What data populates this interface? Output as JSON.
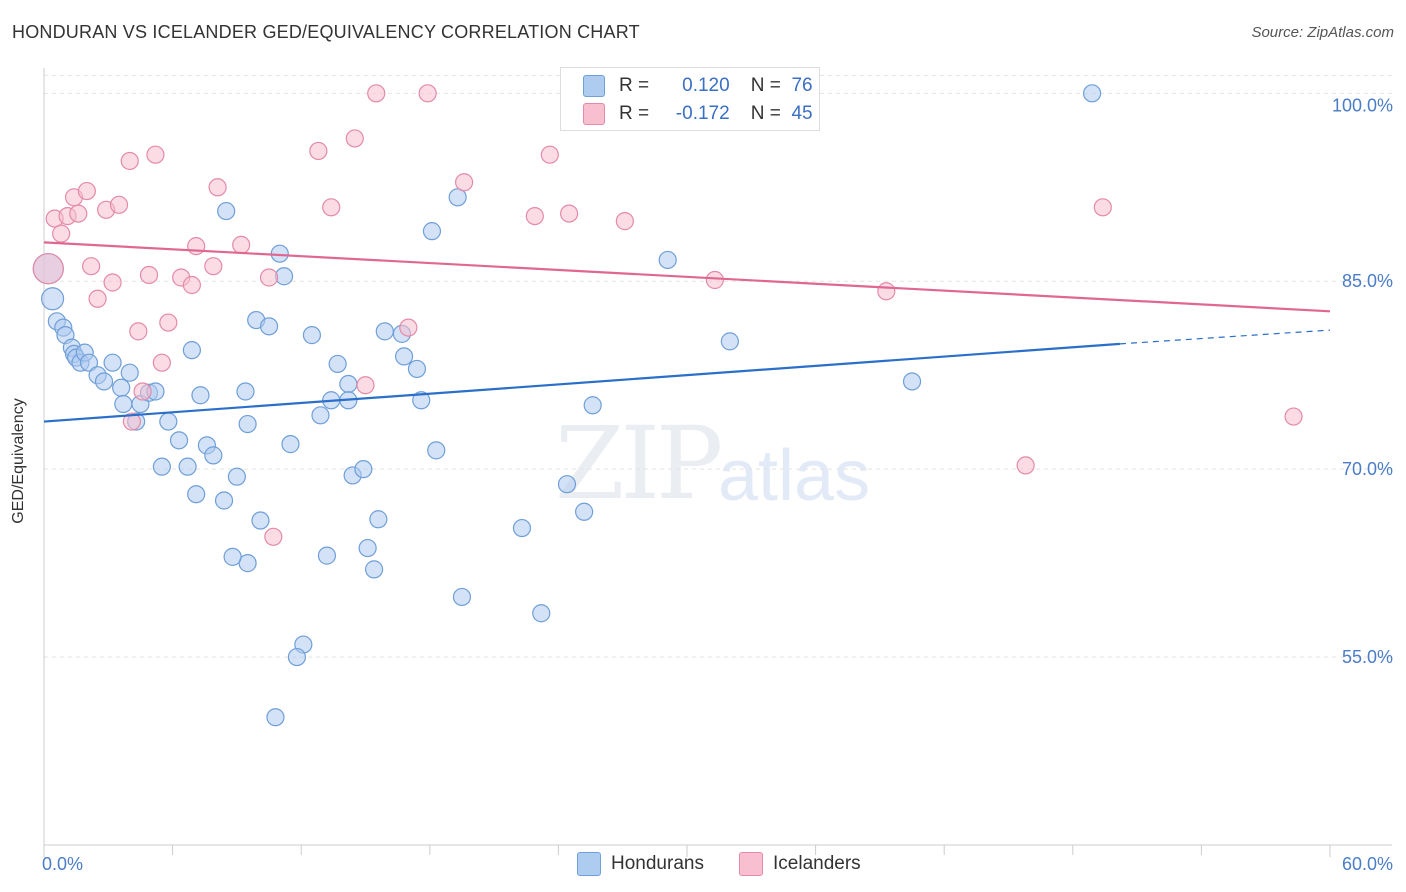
{
  "title": "HONDURAN VS ICELANDER GED/EQUIVALENCY CORRELATION CHART",
  "source": "Source: ZipAtlas.com",
  "watermark": {
    "part1": "ZIP",
    "part2": "atlas"
  },
  "legend": {
    "rows": [
      {
        "r_label": "R =",
        "r_value": "0.120",
        "n_label": "N =",
        "n_value": "76",
        "color": "#aecbf0"
      },
      {
        "r_label": "R =",
        "r_value": "-0.172",
        "n_label": "N =",
        "n_value": "45",
        "color": "#f7bfd0"
      }
    ]
  },
  "chart_data": {
    "type": "scatter",
    "ylabel": "GED/Equivalency",
    "xlim": [
      0,
      60
    ],
    "ylim": [
      40,
      102.5
    ],
    "x_tick_labels": [
      {
        "value": 0,
        "label": "0.0%"
      },
      {
        "value": 60,
        "label": "60.0%"
      }
    ],
    "y_tick_labels": [
      {
        "value": 100,
        "label": "100.0%"
      },
      {
        "value": 85,
        "label": "85.0%"
      },
      {
        "value": 70,
        "label": "70.0%"
      },
      {
        "value": 55,
        "label": "55.0%"
      }
    ],
    "series": [
      {
        "name": "Hondurans",
        "color": "#6f9fd8",
        "fill": "#aecbf0",
        "trend": {
          "x0": 0,
          "y0": 73.8,
          "x1": 50.2,
          "y1": 80.0,
          "dash_x1": 60,
          "dash_y1": 81.1,
          "color": "#2a6fc9"
        },
        "points": [
          [
            0.2,
            86.0
          ],
          [
            0.4,
            83.6
          ],
          [
            0.6,
            81.8
          ],
          [
            0.9,
            81.3
          ],
          [
            1.0,
            80.7
          ],
          [
            1.3,
            79.7
          ],
          [
            1.4,
            79.2
          ],
          [
            1.5,
            78.9
          ],
          [
            1.7,
            78.5
          ],
          [
            1.9,
            79.3
          ],
          [
            2.1,
            78.5
          ],
          [
            2.5,
            77.5
          ],
          [
            2.8,
            77.0
          ],
          [
            3.2,
            78.5
          ],
          [
            3.6,
            76.5
          ],
          [
            4.0,
            77.7
          ],
          [
            4.5,
            75.2
          ],
          [
            4.9,
            76.1
          ],
          [
            3.7,
            75.2
          ],
          [
            5.2,
            76.2
          ],
          [
            5.8,
            73.8
          ],
          [
            4.3,
            73.8
          ],
          [
            6.3,
            72.3
          ],
          [
            6.7,
            70.2
          ],
          [
            5.5,
            70.2
          ],
          [
            7.1,
            68.0
          ],
          [
            6.9,
            79.5
          ],
          [
            7.3,
            75.9
          ],
          [
            7.6,
            71.9
          ],
          [
            7.9,
            71.1
          ],
          [
            8.4,
            67.5
          ],
          [
            8.5,
            90.6
          ],
          [
            9.0,
            69.4
          ],
          [
            9.4,
            76.2
          ],
          [
            9.5,
            73.6
          ],
          [
            9.9,
            81.9
          ],
          [
            10.5,
            81.4
          ],
          [
            10.1,
            65.9
          ],
          [
            9.5,
            62.5
          ],
          [
            8.8,
            63.0
          ],
          [
            11.5,
            72.0
          ],
          [
            11.2,
            85.4
          ],
          [
            11.0,
            87.2
          ],
          [
            12.5,
            80.7
          ],
          [
            12.1,
            56.0
          ],
          [
            11.8,
            55.0
          ],
          [
            10.8,
            50.2
          ],
          [
            13.4,
            75.5
          ],
          [
            13.7,
            78.4
          ],
          [
            12.9,
            74.3
          ],
          [
            14.2,
            76.8
          ],
          [
            14.4,
            69.5
          ],
          [
            14.9,
            70.0
          ],
          [
            15.1,
            63.7
          ],
          [
            15.4,
            62.0
          ],
          [
            15.6,
            66.0
          ],
          [
            15.9,
            81.0
          ],
          [
            16.7,
            80.8
          ],
          [
            16.8,
            79.0
          ],
          [
            17.4,
            78.0
          ],
          [
            17.6,
            75.5
          ],
          [
            18.1,
            89.0
          ],
          [
            18.3,
            71.5
          ],
          [
            19.3,
            91.7
          ],
          [
            19.5,
            59.8
          ],
          [
            22.3,
            65.3
          ],
          [
            23.2,
            58.5
          ],
          [
            24.4,
            68.8
          ],
          [
            25.2,
            66.6
          ],
          [
            25.6,
            75.1
          ],
          [
            29.1,
            86.7
          ],
          [
            32.0,
            80.2
          ],
          [
            40.5,
            77.0
          ],
          [
            48.9,
            100.0
          ],
          [
            14.2,
            75.5
          ],
          [
            13.2,
            63.1
          ]
        ]
      },
      {
        "name": "Icelanders",
        "color": "#e48aa8",
        "fill": "#f7bfd0",
        "trend": {
          "x0": 0,
          "y0": 88.1,
          "x1": 60,
          "y1": 82.6,
          "color": "#e06890"
        },
        "points": [
          [
            0.2,
            86.0
          ],
          [
            0.5,
            90.0
          ],
          [
            0.8,
            88.8
          ],
          [
            1.1,
            90.2
          ],
          [
            1.4,
            91.7
          ],
          [
            1.6,
            90.4
          ],
          [
            2.0,
            92.2
          ],
          [
            2.2,
            86.2
          ],
          [
            2.5,
            83.6
          ],
          [
            2.9,
            90.7
          ],
          [
            3.2,
            84.9
          ],
          [
            3.5,
            91.1
          ],
          [
            4.0,
            94.6
          ],
          [
            4.4,
            81.0
          ],
          [
            4.6,
            76.2
          ],
          [
            4.9,
            85.5
          ],
          [
            5.2,
            95.1
          ],
          [
            5.5,
            78.5
          ],
          [
            5.8,
            81.7
          ],
          [
            6.4,
            85.3
          ],
          [
            6.9,
            84.7
          ],
          [
            7.1,
            87.8
          ],
          [
            7.9,
            86.2
          ],
          [
            8.1,
            92.5
          ],
          [
            9.2,
            87.9
          ],
          [
            10.5,
            85.3
          ],
          [
            10.7,
            64.6
          ],
          [
            12.8,
            95.4
          ],
          [
            13.4,
            90.9
          ],
          [
            14.5,
            96.4
          ],
          [
            15.0,
            76.7
          ],
          [
            15.5,
            100.0
          ],
          [
            17.0,
            81.3
          ],
          [
            17.9,
            100.0
          ],
          [
            19.6,
            92.9
          ],
          [
            22.9,
            90.2
          ],
          [
            23.6,
            95.1
          ],
          [
            24.5,
            90.4
          ],
          [
            27.1,
            89.8
          ],
          [
            31.3,
            85.1
          ],
          [
            39.3,
            84.2
          ],
          [
            45.8,
            70.3
          ],
          [
            49.4,
            90.9
          ],
          [
            58.3,
            74.2
          ],
          [
            4.1,
            73.8
          ]
        ]
      }
    ]
  },
  "bottom_legend": [
    {
      "label": "Hondurans",
      "color": "#aecbf0",
      "border": "#6f9fd8"
    },
    {
      "label": "Icelanders",
      "color": "#f7bfd0",
      "border": "#e48aa8"
    }
  ]
}
